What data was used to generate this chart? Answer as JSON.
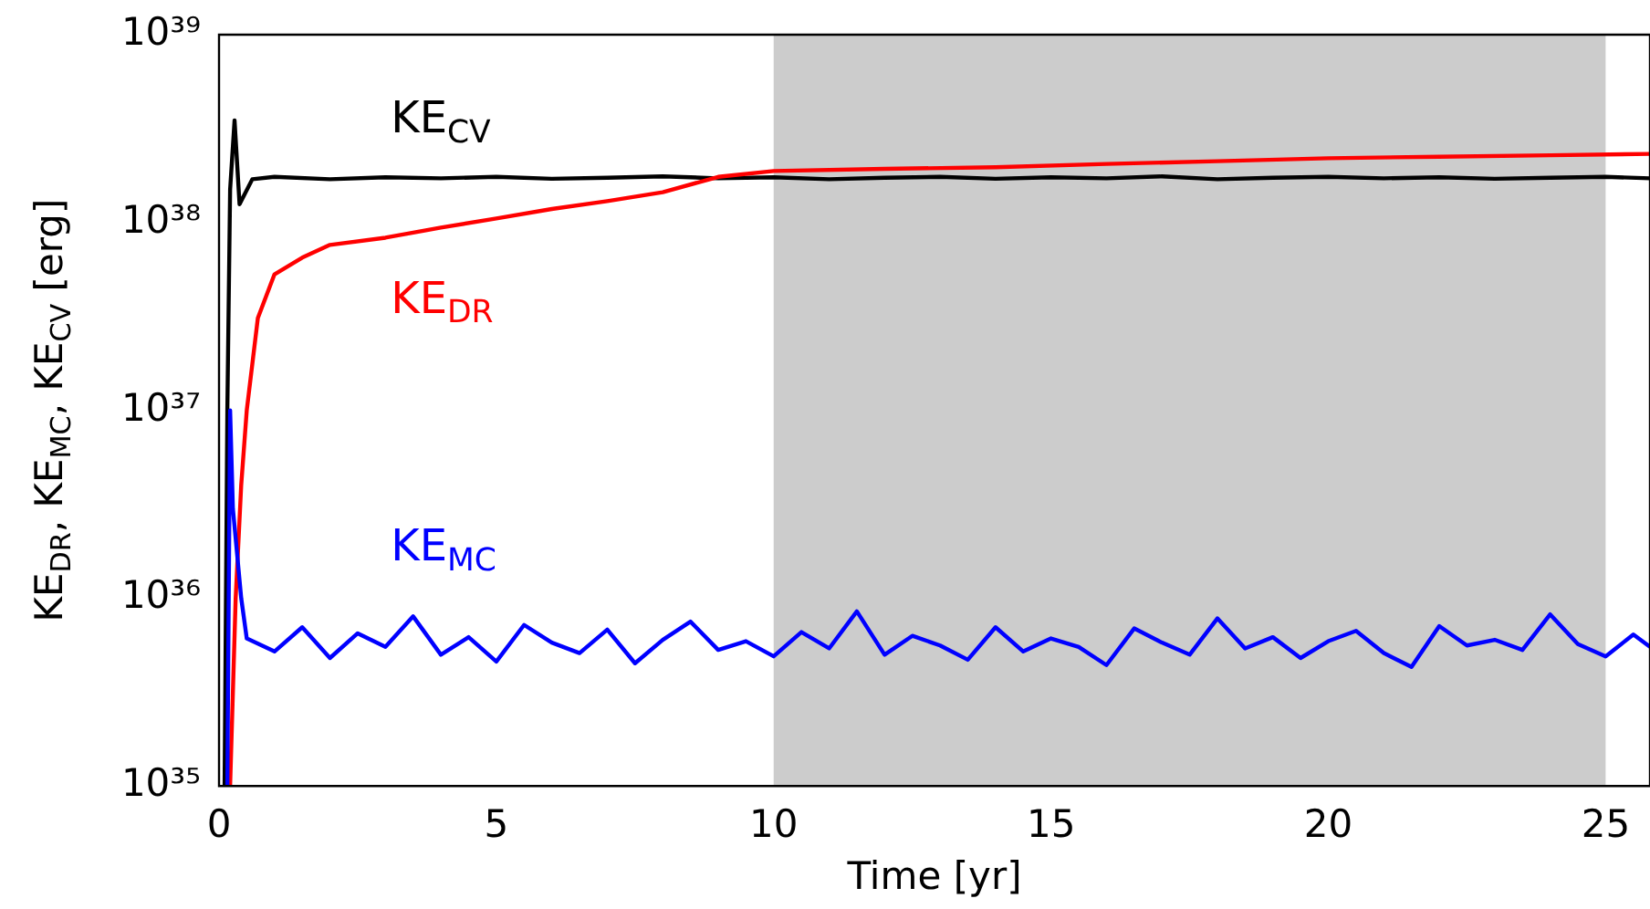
{
  "chart_data": {
    "type": "line",
    "xlabel": "Time [yr]",
    "ylabel": "KE$_{DR}$, KE$_{MC}$, KE$_{CV}$ [erg]",
    "log": "y",
    "grid": false,
    "legend": false,
    "marker": "none",
    "line_style": "solid",
    "xlim": [
      0,
      25.8
    ],
    "xticks": [
      0,
      5,
      10,
      15,
      20,
      25
    ],
    "ylim": [
      1e+35,
      1e+39
    ],
    "yticks": [
      {
        "value": 1e+35,
        "label": "10³⁵"
      },
      {
        "value": 1e+36,
        "label": "10³⁶"
      },
      {
        "value": 1e+37,
        "label": "10³⁷"
      },
      {
        "value": 1e+38,
        "label": "10³⁸"
      },
      {
        "value": 1e+39,
        "label": "10³⁹"
      }
    ],
    "bands": [
      {
        "axis": "x",
        "from": 10,
        "to": 25,
        "color": "#cccccc"
      }
    ],
    "series": [
      {
        "name": "KE$_{MC}$",
        "color": "#0000ff",
        "x": [
          0.15,
          0.2,
          0.25,
          0.4,
          0.5,
          1,
          1.5,
          2,
          2.5,
          3,
          3.5,
          4,
          4.5,
          5,
          5.5,
          6,
          6.5,
          7,
          7.5,
          8,
          8.5,
          9,
          9.5,
          10,
          10.5,
          11,
          11.5,
          12,
          12.5,
          13,
          13.5,
          14,
          14.5,
          15,
          15.5,
          16,
          16.5,
          17,
          17.5,
          18,
          18.5,
          19,
          19.5,
          20,
          20.5,
          21,
          21.5,
          22,
          22.5,
          23,
          23.5,
          24,
          24.5,
          25,
          25.5,
          25.8
        ],
        "values": [
          1e+35,
          1e+37,
          3e+36,
          1e+36,
          6.1e+35,
          5.2e+35,
          7e+35,
          4.8e+35,
          6.5e+35,
          5.5e+35,
          8e+35,
          5e+35,
          6.2e+35,
          4.6e+35,
          7.2e+35,
          5.8e+35,
          5.1e+35,
          6.8e+35,
          4.5e+35,
          6e+35,
          7.5e+35,
          5.3e+35,
          5.9e+35,
          4.9e+35,
          6.6e+35,
          5.4e+35,
          8.5e+35,
          5e+35,
          6.3e+35,
          5.6e+35,
          4.7e+35,
          7e+35,
          5.2e+35,
          6.1e+35,
          5.5e+35,
          4.4e+35,
          6.9e+35,
          5.8e+35,
          5e+35,
          7.8e+35,
          5.4e+35,
          6.2e+35,
          4.8e+35,
          5.9e+35,
          6.7e+35,
          5.1e+35,
          4.3e+35,
          7.1e+35,
          5.6e+35,
          6e+35,
          5.3e+35,
          8.2e+35,
          5.7e+35,
          4.9e+35,
          6.4e+35,
          5.5e+35
        ]
      },
      {
        "name": "KE$_{DR}$",
        "color": "#ff0000",
        "x": [
          0.2,
          0.3,
          0.4,
          0.5,
          0.7,
          1,
          1.5,
          2,
          3,
          4,
          5,
          6,
          7,
          8,
          9,
          10,
          12,
          14,
          16,
          18,
          20,
          22,
          24,
          25.8
        ],
        "values": [
          1e+35,
          1e+36,
          4e+36,
          1e+37,
          3.1e+37,
          5.3e+37,
          6.5e+37,
          7.6e+37,
          8.3e+37,
          9.4e+37,
          1.05e+38,
          1.18e+38,
          1.3e+38,
          1.45e+38,
          1.75e+38,
          1.88e+38,
          1.93e+38,
          1.97e+38,
          2.05e+38,
          2.12e+38,
          2.2e+38,
          2.24e+38,
          2.28e+38,
          2.32e+38
        ]
      },
      {
        "name": "KE$_{CV}$",
        "color": "#000000",
        "x": [
          0.1,
          0.15,
          0.2,
          0.28,
          0.37,
          0.6,
          1,
          2,
          3,
          4,
          5,
          6,
          7,
          8,
          9,
          10,
          11,
          12,
          13,
          14,
          15,
          16,
          17,
          18,
          19,
          20,
          21,
          22,
          23,
          24,
          25,
          25.8
        ],
        "values": [
          1e+35,
          1e+37,
          1.5e+38,
          3.5e+38,
          1.25e+38,
          1.7e+38,
          1.75e+38,
          1.7e+38,
          1.74e+38,
          1.72e+38,
          1.75e+38,
          1.71e+38,
          1.73e+38,
          1.76e+38,
          1.72e+38,
          1.74e+38,
          1.7e+38,
          1.73e+38,
          1.75e+38,
          1.71e+38,
          1.74e+38,
          1.72e+38,
          1.76e+38,
          1.7e+38,
          1.73e+38,
          1.75e+38,
          1.72e+38,
          1.74e+38,
          1.71e+38,
          1.73e+38,
          1.75e+38,
          1.72e+38
        ]
      }
    ]
  }
}
